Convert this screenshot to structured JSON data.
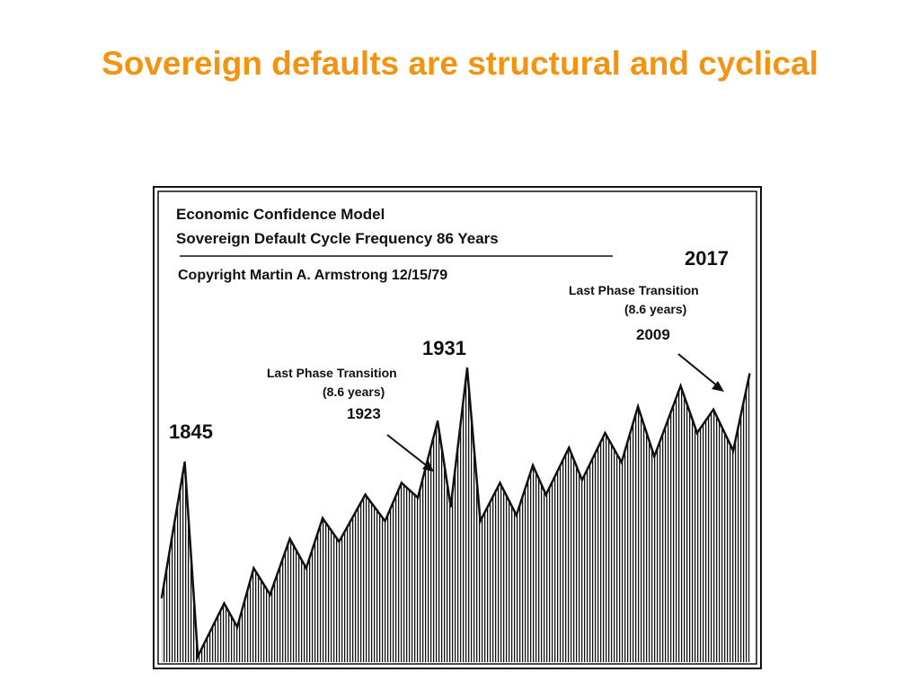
{
  "slide": {
    "title": "Sovereign defaults are structural and cyclical",
    "title_color": "#F29411"
  },
  "chart_data": {
    "type": "area",
    "title": "Economic Confidence Model",
    "subtitle": "Sovereign Default Cycle Frequency 86 Years",
    "copyright": "Copyright Martin A. Armstrong 12/15/79",
    "ink_color": "#111111",
    "x_range": [
      1838,
      2018
    ],
    "y_range": [
      0,
      100
    ],
    "series": [
      {
        "x": [
          1838,
          1845,
          1849,
          1857,
          1861,
          1866,
          1871,
          1877,
          1882,
          1887,
          1892,
          1900,
          1906,
          1911,
          1916,
          1922,
          1926,
          1931,
          1935,
          1941,
          1946,
          1951,
          1955,
          1962,
          1966,
          1973,
          1978,
          1983,
          1988,
          1996,
          2001,
          2006,
          2012,
          2017
        ],
        "y": [
          22,
          68,
          2,
          20,
          12,
          32,
          23,
          42,
          32,
          49,
          41,
          57,
          48,
          61,
          56,
          82,
          53,
          100,
          48,
          61,
          50,
          67,
          57,
          73,
          62,
          78,
          68,
          87,
          70,
          94,
          78,
          86,
          72,
          98
        ]
      }
    ],
    "annotations": [
      {
        "text": "1845",
        "x": 1845
      },
      {
        "text": "1931",
        "x": 1931
      },
      {
        "text": "2017",
        "x": 2017
      },
      {
        "text": "Last Phase Transition",
        "x": 1923
      },
      {
        "text": "(8.6 years)",
        "x": 1923
      },
      {
        "text": "1923",
        "x": 1923
      },
      {
        "text": "Last Phase Transition",
        "x": 2009
      },
      {
        "text": "(8.6 years)",
        "x": 2009
      },
      {
        "text": "2009",
        "x": 2009
      }
    ]
  }
}
